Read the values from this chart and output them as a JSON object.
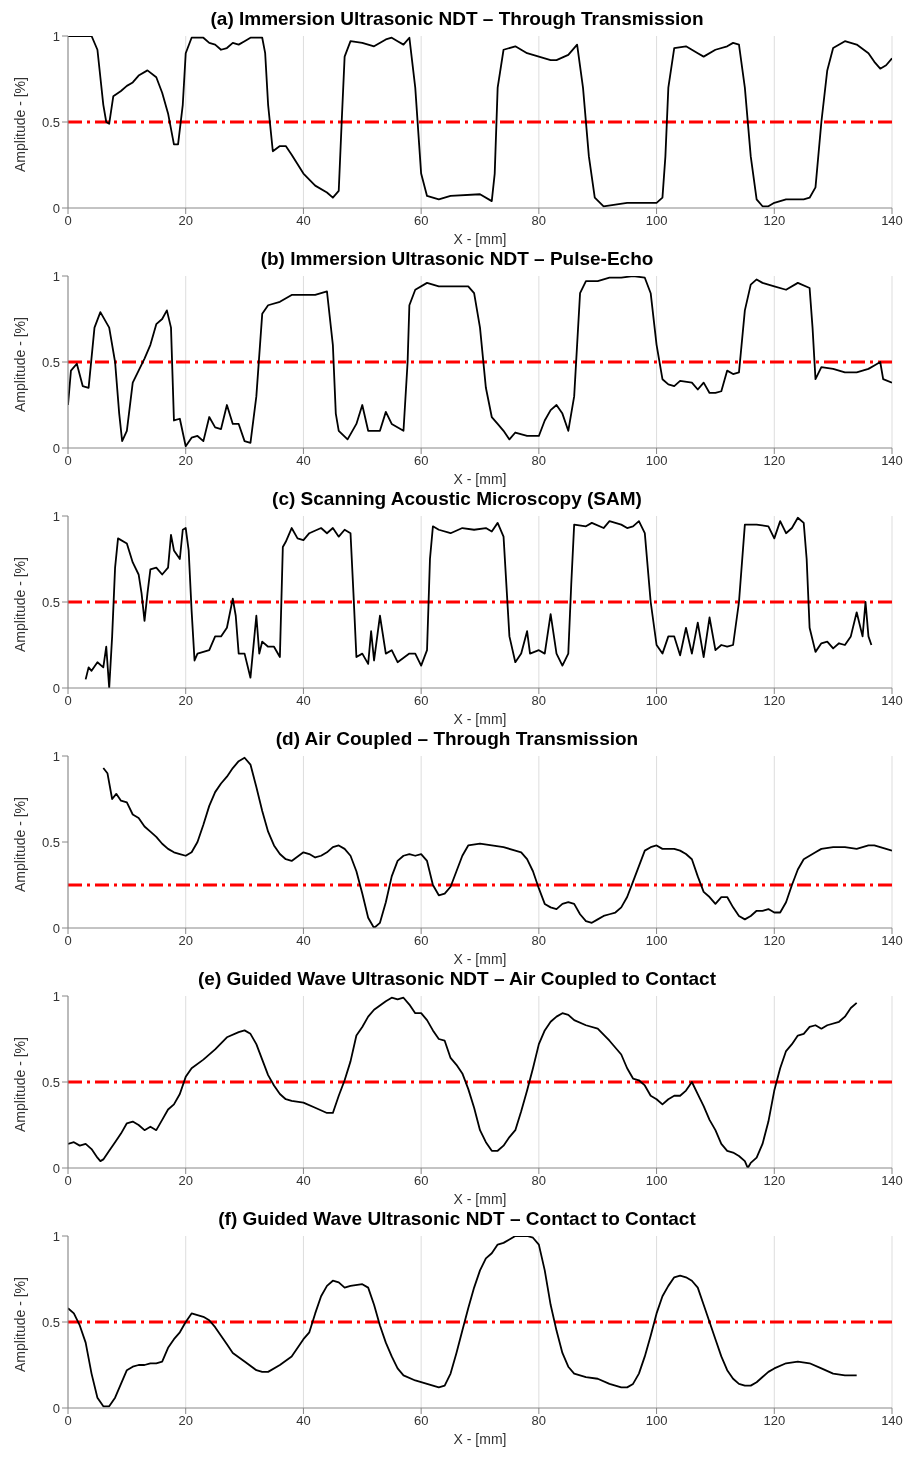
{
  "chart_data": [
    {
      "type": "line",
      "title": "(a) Immersion Ultrasonic NDT – Through Transmission",
      "xlabel": "X - [mm]",
      "ylabel": "Amplitude - [%]",
      "xlim": [
        0,
        140
      ],
      "xticks": [
        0,
        20,
        40,
        60,
        80,
        100,
        120,
        140
      ],
      "ylim": [
        0,
        1
      ],
      "yticks": [
        0,
        0.5,
        1
      ],
      "grid": "x",
      "ref_lines": [
        {
          "axis": "y",
          "value": 0.5,
          "color": "#ff0000",
          "line_style": "dashed"
        }
      ],
      "series": [
        {
          "color": "#000000",
          "x": [
            0,
            4,
            5,
            6,
            6.5,
            7,
            7.7,
            9,
            10,
            11,
            12,
            13.5,
            15,
            16,
            17,
            18,
            18.7,
            19.5,
            20,
            21,
            23,
            24,
            25,
            26,
            27,
            28,
            29,
            30,
            31,
            33,
            33.5,
            34,
            34.8,
            36,
            37,
            38,
            40,
            42,
            44,
            45,
            46,
            46.5,
            47,
            48,
            50,
            52,
            54,
            55,
            56,
            57,
            58,
            59,
            60,
            61,
            63,
            65,
            70,
            72,
            72.5,
            73,
            74,
            76,
            78,
            80,
            82,
            83,
            85,
            86.5,
            87.5,
            88.5,
            89.5,
            91,
            93,
            95,
            100,
            101,
            101.5,
            102,
            103,
            105,
            107,
            108,
            110,
            112,
            113,
            114,
            115,
            116,
            117,
            118,
            119,
            120,
            122,
            125,
            126,
            127,
            128,
            129,
            130,
            132,
            134,
            136,
            137,
            138,
            139,
            140
          ],
          "values": [
            1,
            1,
            0.92,
            0.6,
            0.5,
            0.49,
            0.65,
            0.68,
            0.71,
            0.73,
            0.77,
            0.8,
            0.76,
            0.67,
            0.55,
            0.37,
            0.37,
            0.6,
            0.9,
            0.99,
            0.99,
            0.96,
            0.95,
            0.92,
            0.93,
            0.96,
            0.95,
            0.97,
            0.99,
            0.99,
            0.9,
            0.6,
            0.33,
            0.36,
            0.36,
            0.31,
            0.2,
            0.13,
            0.09,
            0.06,
            0.1,
            0.5,
            0.88,
            0.97,
            0.96,
            0.94,
            0.98,
            0.99,
            0.97,
            0.95,
            0.99,
            0.7,
            0.2,
            0.07,
            0.05,
            0.07,
            0.08,
            0.04,
            0.2,
            0.7,
            0.92,
            0.94,
            0.9,
            0.88,
            0.86,
            0.86,
            0.89,
            0.95,
            0.7,
            0.3,
            0.06,
            0.01,
            0.02,
            0.03,
            0.03,
            0.06,
            0.3,
            0.7,
            0.93,
            0.94,
            0.9,
            0.88,
            0.92,
            0.94,
            0.96,
            0.95,
            0.7,
            0.3,
            0.05,
            0.01,
            0.01,
            0.03,
            0.05,
            0.05,
            0.06,
            0.12,
            0.5,
            0.8,
            0.93,
            0.97,
            0.95,
            0.9,
            0.85,
            0.81,
            0.83,
            0.87
          ]
        }
      ]
    },
    {
      "type": "line",
      "title": "(b) Immersion Ultrasonic NDT – Pulse-Echo",
      "xlabel": "X - [mm]",
      "ylabel": "Amplitude - [%]",
      "xlim": [
        0,
        140
      ],
      "xticks": [
        0,
        20,
        40,
        60,
        80,
        100,
        120,
        140
      ],
      "ylim": [
        0,
        1
      ],
      "yticks": [
        0,
        0.5,
        1
      ],
      "grid": "x",
      "ref_lines": [
        {
          "axis": "y",
          "value": 0.5,
          "color": "#ff0000",
          "line_style": "dashed"
        }
      ],
      "series": [
        {
          "color": "#000000",
          "x": [
            0,
            0.5,
            1.5,
            2.5,
            3.5,
            4.5,
            5.5,
            7,
            8,
            8.7,
            9.2,
            10,
            11,
            12,
            13,
            14,
            15,
            16,
            16.8,
            17.5,
            18,
            19,
            20,
            21,
            22,
            23,
            24,
            25,
            26,
            27,
            28,
            29,
            30,
            31,
            32,
            33,
            34,
            36,
            38,
            40,
            42,
            44,
            45,
            45.5,
            46,
            47.5,
            49,
            50,
            51,
            53,
            54,
            55,
            57,
            57.7,
            58,
            59,
            61,
            63,
            66,
            68,
            69,
            70,
            71,
            72,
            73,
            74,
            75,
            76,
            78,
            80,
            81,
            82,
            83,
            84,
            85,
            86,
            87,
            88,
            90,
            92,
            94,
            96,
            98,
            99,
            100,
            101,
            102,
            103,
            104,
            106,
            107,
            108,
            109,
            110,
            111,
            112,
            113,
            114,
            115,
            116,
            117,
            118,
            120,
            122,
            124,
            126,
            126.5,
            127,
            128,
            130,
            132,
            134,
            136,
            137,
            138,
            138.5,
            140
          ],
          "values": [
            0.25,
            0.45,
            0.49,
            0.36,
            0.35,
            0.7,
            0.79,
            0.7,
            0.5,
            0.2,
            0.04,
            0.1,
            0.38,
            0.45,
            0.52,
            0.6,
            0.72,
            0.75,
            0.8,
            0.7,
            0.16,
            0.17,
            0.01,
            0.06,
            0.07,
            0.04,
            0.18,
            0.12,
            0.11,
            0.25,
            0.14,
            0.14,
            0.04,
            0.03,
            0.3,
            0.78,
            0.83,
            0.85,
            0.89,
            0.89,
            0.89,
            0.91,
            0.6,
            0.2,
            0.1,
            0.05,
            0.14,
            0.25,
            0.1,
            0.1,
            0.21,
            0.14,
            0.1,
            0.5,
            0.83,
            0.92,
            0.96,
            0.94,
            0.94,
            0.94,
            0.9,
            0.7,
            0.35,
            0.18,
            0.14,
            0.1,
            0.05,
            0.09,
            0.07,
            0.07,
            0.16,
            0.22,
            0.25,
            0.2,
            0.1,
            0.3,
            0.9,
            0.97,
            0.97,
            0.99,
            0.99,
            1,
            0.99,
            0.9,
            0.6,
            0.4,
            0.37,
            0.36,
            0.39,
            0.38,
            0.34,
            0.38,
            0.32,
            0.32,
            0.33,
            0.45,
            0.43,
            0.44,
            0.8,
            0.95,
            0.98,
            0.96,
            0.94,
            0.92,
            0.96,
            0.93,
            0.7,
            0.4,
            0.47,
            0.46,
            0.44,
            0.44,
            0.46,
            0.48,
            0.5,
            0.4,
            0.38
          ]
        }
      ]
    },
    {
      "type": "line",
      "title": "(c) Scanning Acoustic Microscopy (SAM)",
      "xlabel": "X - [mm]",
      "ylabel": "Amplitude - [%]",
      "xlim": [
        0,
        140
      ],
      "xticks": [
        0,
        20,
        40,
        60,
        80,
        100,
        120,
        140
      ],
      "ylim": [
        0,
        1
      ],
      "yticks": [
        0,
        0.5,
        1
      ],
      "grid": "x",
      "ref_lines": [
        {
          "axis": "y",
          "value": 0.5,
          "color": "#ff0000",
          "line_style": "dashed"
        }
      ],
      "series": [
        {
          "color": "#000000",
          "x": [
            3,
            3.5,
            4,
            5,
            6,
            6.5,
            7,
            7.5,
            8,
            8.5,
            10,
            11,
            12,
            12.5,
            13,
            13.5,
            14,
            15,
            16,
            17,
            17.5,
            18,
            19,
            19.5,
            20,
            20.5,
            21,
            21.5,
            22,
            24,
            25,
            26,
            27,
            28,
            28.5,
            29,
            30,
            31,
            32,
            32.5,
            33,
            34,
            35,
            36,
            36.5,
            37,
            38,
            39,
            40,
            41,
            43,
            44,
            45,
            46,
            47,
            48,
            48.5,
            49,
            50,
            51,
            51.5,
            52,
            53,
            54,
            55,
            56,
            58,
            59,
            60,
            61,
            61.5,
            62,
            63,
            65,
            67,
            69,
            71,
            72,
            73,
            74,
            75,
            76,
            77,
            78,
            78.5,
            80,
            81,
            82,
            83,
            84,
            85,
            85.5,
            86,
            88,
            89,
            91,
            92,
            94,
            95,
            96,
            97,
            98,
            99,
            100,
            101,
            102,
            103,
            104,
            105,
            106,
            107,
            108,
            109,
            110,
            111,
            112,
            113,
            114,
            115,
            117,
            119,
            120,
            121,
            122,
            123,
            124,
            125,
            125.5,
            126,
            127,
            128,
            129,
            130,
            131,
            132,
            133,
            134,
            135,
            135.5,
            136,
            136.5
          ],
          "values": [
            0.05,
            0.12,
            0.1,
            0.15,
            0.12,
            0.24,
            0,
            0.3,
            0.7,
            0.87,
            0.84,
            0.73,
            0.66,
            0.55,
            0.39,
            0.55,
            0.69,
            0.7,
            0.66,
            0.7,
            0.89,
            0.8,
            0.75,
            0.92,
            0.93,
            0.8,
            0.45,
            0.16,
            0.2,
            0.22,
            0.3,
            0.3,
            0.35,
            0.52,
            0.42,
            0.2,
            0.2,
            0.06,
            0.42,
            0.2,
            0.27,
            0.24,
            0.24,
            0.18,
            0.82,
            0.85,
            0.93,
            0.87,
            0.86,
            0.9,
            0.93,
            0.9,
            0.93,
            0.88,
            0.92,
            0.9,
            0.55,
            0.18,
            0.2,
            0.14,
            0.33,
            0.16,
            0.42,
            0.2,
            0.22,
            0.15,
            0.2,
            0.2,
            0.13,
            0.22,
            0.75,
            0.94,
            0.92,
            0.9,
            0.93,
            0.92,
            0.93,
            0.91,
            0.96,
            0.88,
            0.3,
            0.15,
            0.2,
            0.33,
            0.2,
            0.22,
            0.2,
            0.43,
            0.2,
            0.13,
            0.2,
            0.6,
            0.95,
            0.94,
            0.96,
            0.93,
            0.97,
            0.95,
            0.93,
            0.94,
            0.97,
            0.9,
            0.5,
            0.25,
            0.2,
            0.3,
            0.3,
            0.19,
            0.35,
            0.2,
            0.38,
            0.18,
            0.41,
            0.22,
            0.25,
            0.24,
            0.25,
            0.5,
            0.95,
            0.95,
            0.94,
            0.87,
            0.97,
            0.9,
            0.93,
            0.99,
            0.96,
            0.75,
            0.35,
            0.21,
            0.26,
            0.27,
            0.23,
            0.26,
            0.25,
            0.3,
            0.44,
            0.3,
            0.5,
            0.3,
            0.25
          ]
        }
      ]
    },
    {
      "type": "line",
      "title": "(d) Air Coupled – Through Transmission",
      "xlabel": "X - [mm]",
      "ylabel": "Amplitude - [%]",
      "xlim": [
        0,
        140
      ],
      "xticks": [
        0,
        20,
        40,
        60,
        80,
        100,
        120,
        140
      ],
      "ylim": [
        0,
        1
      ],
      "yticks": [
        0,
        0.5,
        1
      ],
      "grid": "x",
      "ref_lines": [
        {
          "axis": "y",
          "value": 0.25,
          "color": "#ff0000",
          "line_style": "dashed"
        }
      ],
      "series": [
        {
          "color": "#000000",
          "x": [
            6,
            6.7,
            7.5,
            8.2,
            9,
            10,
            11,
            12,
            13,
            14,
            15,
            16,
            17,
            18,
            19,
            20,
            21,
            22,
            23,
            24,
            25,
            26,
            27,
            28,
            29,
            30,
            31,
            32,
            33,
            34,
            35,
            36,
            37,
            38,
            40,
            41,
            42,
            43,
            44,
            45,
            46,
            47,
            48,
            49,
            50,
            51,
            52,
            53,
            54,
            55,
            56,
            57,
            58,
            59,
            60,
            61,
            62,
            63,
            64,
            65,
            66,
            67,
            68,
            70,
            72,
            74,
            76,
            77,
            78,
            79,
            80,
            81,
            82,
            83,
            84,
            85,
            86,
            87,
            88,
            89,
            90,
            91,
            92,
            93,
            94,
            95,
            96,
            97,
            98,
            99,
            100,
            101,
            103,
            104,
            105,
            106,
            107,
            108,
            109,
            110,
            111,
            112,
            113,
            114,
            115,
            116,
            117,
            118,
            119,
            120,
            121,
            122,
            123,
            124,
            125,
            127,
            128,
            130,
            132,
            134,
            136,
            137,
            138,
            139,
            140
          ],
          "values": [
            0.93,
            0.9,
            0.75,
            0.78,
            0.74,
            0.73,
            0.66,
            0.64,
            0.59,
            0.56,
            0.53,
            0.49,
            0.46,
            0.44,
            0.43,
            0.42,
            0.44,
            0.5,
            0.6,
            0.71,
            0.79,
            0.84,
            0.88,
            0.93,
            0.97,
            0.99,
            0.95,
            0.82,
            0.68,
            0.56,
            0.48,
            0.43,
            0.4,
            0.39,
            0.44,
            0.43,
            0.41,
            0.42,
            0.44,
            0.47,
            0.48,
            0.46,
            0.42,
            0.33,
            0.2,
            0.06,
            0,
            0.03,
            0.15,
            0.3,
            0.39,
            0.42,
            0.43,
            0.42,
            0.43,
            0.39,
            0.25,
            0.19,
            0.2,
            0.24,
            0.33,
            0.42,
            0.48,
            0.49,
            0.48,
            0.47,
            0.45,
            0.44,
            0.4,
            0.33,
            0.23,
            0.14,
            0.12,
            0.11,
            0.14,
            0.15,
            0.14,
            0.08,
            0.04,
            0.03,
            0.05,
            0.07,
            0.08,
            0.09,
            0.12,
            0.18,
            0.27,
            0.36,
            0.45,
            0.47,
            0.48,
            0.46,
            0.46,
            0.45,
            0.43,
            0.4,
            0.3,
            0.21,
            0.18,
            0.14,
            0.18,
            0.18,
            0.12,
            0.07,
            0.05,
            0.07,
            0.1,
            0.1,
            0.11,
            0.09,
            0.09,
            0.15,
            0.25,
            0.34,
            0.4,
            0.44,
            0.46,
            0.47,
            0.47,
            0.46,
            0.48,
            0.48,
            0.47,
            0.46,
            0.45
          ]
        }
      ]
    },
    {
      "type": "line",
      "title": "(e) Guided Wave Ultrasonic NDT – Air Coupled to Contact",
      "xlabel": "X - [mm]",
      "ylabel": "Amplitude - [%]",
      "xlim": [
        0,
        140
      ],
      "xticks": [
        0,
        20,
        40,
        60,
        80,
        100,
        120,
        140
      ],
      "ylim": [
        0,
        1
      ],
      "yticks": [
        0,
        0.5,
        1
      ],
      "grid": "x",
      "ref_lines": [
        {
          "axis": "y",
          "value": 0.5,
          "color": "#ff0000",
          "line_style": "dashed"
        }
      ],
      "series": [
        {
          "color": "#000000",
          "x": [
            0,
            1,
            2,
            3,
            4,
            5,
            5.5,
            6,
            7,
            8,
            9,
            10,
            11,
            12,
            13,
            14,
            15,
            16,
            17,
            18,
            19,
            20,
            21,
            23,
            25,
            27,
            29,
            30,
            31,
            32,
            33,
            34,
            35,
            36,
            37,
            38,
            40,
            42,
            44,
            45,
            46,
            47,
            48,
            49,
            50,
            51,
            52,
            54,
            55,
            56,
            57,
            58,
            59,
            60,
            61,
            62,
            63,
            64,
            65,
            66,
            67,
            68,
            69,
            70,
            71,
            72,
            73,
            74,
            75,
            76,
            77,
            78,
            79,
            80,
            81,
            82,
            83,
            84,
            85,
            86,
            88,
            90,
            92,
            94,
            95,
            96,
            97,
            98,
            99,
            100,
            101,
            102,
            103,
            104,
            105,
            106,
            107,
            108,
            109,
            110,
            111,
            112,
            113,
            114,
            115,
            115.5,
            116,
            117,
            118,
            119,
            120,
            121,
            122,
            123,
            124,
            125,
            126,
            127,
            128,
            129,
            131,
            132,
            133,
            134
          ],
          "values": [
            0.14,
            0.15,
            0.13,
            0.14,
            0.11,
            0.06,
            0.04,
            0.05,
            0.1,
            0.15,
            0.2,
            0.26,
            0.27,
            0.25,
            0.22,
            0.24,
            0.22,
            0.28,
            0.34,
            0.37,
            0.43,
            0.53,
            0.58,
            0.63,
            0.69,
            0.76,
            0.79,
            0.8,
            0.78,
            0.72,
            0.63,
            0.54,
            0.48,
            0.43,
            0.4,
            0.39,
            0.38,
            0.35,
            0.32,
            0.32,
            0.42,
            0.51,
            0.62,
            0.77,
            0.82,
            0.88,
            0.92,
            0.97,
            0.99,
            0.98,
            0.99,
            0.95,
            0.9,
            0.9,
            0.86,
            0.8,
            0.75,
            0.74,
            0.64,
            0.6,
            0.55,
            0.46,
            0.35,
            0.22,
            0.15,
            0.1,
            0.1,
            0.13,
            0.18,
            0.22,
            0.33,
            0.45,
            0.58,
            0.72,
            0.8,
            0.85,
            0.88,
            0.9,
            0.89,
            0.86,
            0.83,
            0.81,
            0.74,
            0.66,
            0.58,
            0.52,
            0.51,
            0.48,
            0.42,
            0.4,
            0.37,
            0.4,
            0.42,
            0.42,
            0.45,
            0.5,
            0.43,
            0.36,
            0.28,
            0.22,
            0.14,
            0.1,
            0.09,
            0.07,
            0.04,
            0,
            0.03,
            0.06,
            0.14,
            0.27,
            0.45,
            0.58,
            0.68,
            0.72,
            0.77,
            0.78,
            0.82,
            0.83,
            0.81,
            0.83,
            0.85,
            0.88,
            0.93,
            0.96
          ]
        }
      ]
    },
    {
      "type": "line",
      "title": "(f) Guided Wave Ultrasonic NDT – Contact to Contact",
      "xlabel": "X - [mm]",
      "ylabel": "Amplitude - [%]",
      "xlim": [
        0,
        140
      ],
      "xticks": [
        0,
        20,
        40,
        60,
        80,
        100,
        120,
        140
      ],
      "ylim": [
        0,
        1
      ],
      "yticks": [
        0,
        0.5,
        1
      ],
      "grid": "x",
      "ref_lines": [
        {
          "axis": "y",
          "value": 0.5,
          "color": "#ff0000",
          "line_style": "dashed"
        }
      ],
      "series": [
        {
          "color": "#000000",
          "x": [
            0,
            1,
            2,
            3,
            4,
            5,
            6,
            7,
            8,
            9,
            10,
            11,
            12,
            13,
            14,
            15,
            16,
            17,
            18,
            19,
            20,
            21,
            22,
            23,
            24,
            25,
            26,
            27,
            28,
            30,
            32,
            33,
            34,
            36,
            38,
            40,
            41,
            42,
            43,
            44,
            45,
            46,
            47,
            48,
            50,
            51,
            52,
            53,
            54,
            55,
            56,
            57,
            59,
            61,
            63,
            64,
            65,
            66,
            67,
            68,
            69,
            70,
            71,
            72,
            73,
            74,
            75,
            76,
            78,
            79,
            80,
            81,
            82,
            83,
            84,
            85,
            86,
            88,
            90,
            92,
            94,
            95,
            96,
            97,
            98,
            99,
            100,
            101,
            102,
            103,
            104,
            105,
            106,
            107,
            108,
            109,
            110,
            111,
            112,
            113,
            114,
            115,
            116,
            117,
            118,
            119,
            120,
            122,
            124,
            126,
            128,
            130,
            132,
            133,
            134
          ],
          "values": [
            0.58,
            0.55,
            0.48,
            0.38,
            0.2,
            0.06,
            0.01,
            0.01,
            0.06,
            0.14,
            0.22,
            0.24,
            0.25,
            0.25,
            0.26,
            0.26,
            0.27,
            0.35,
            0.4,
            0.44,
            0.5,
            0.55,
            0.54,
            0.53,
            0.51,
            0.47,
            0.42,
            0.37,
            0.32,
            0.27,
            0.22,
            0.21,
            0.21,
            0.25,
            0.3,
            0.4,
            0.44,
            0.55,
            0.65,
            0.71,
            0.74,
            0.73,
            0.7,
            0.71,
            0.72,
            0.7,
            0.6,
            0.48,
            0.38,
            0.3,
            0.23,
            0.19,
            0.16,
            0.14,
            0.12,
            0.13,
            0.2,
            0.32,
            0.45,
            0.58,
            0.7,
            0.8,
            0.87,
            0.9,
            0.95,
            0.96,
            0.98,
            1,
            1,
            0.99,
            0.95,
            0.8,
            0.6,
            0.45,
            0.32,
            0.24,
            0.2,
            0.18,
            0.17,
            0.14,
            0.12,
            0.12,
            0.14,
            0.2,
            0.3,
            0.42,
            0.55,
            0.65,
            0.71,
            0.76,
            0.77,
            0.76,
            0.74,
            0.7,
            0.6,
            0.5,
            0.4,
            0.3,
            0.22,
            0.17,
            0.14,
            0.13,
            0.13,
            0.15,
            0.18,
            0.21,
            0.23,
            0.26,
            0.27,
            0.26,
            0.23,
            0.2,
            0.19,
            0.19,
            0.19
          ]
        }
      ]
    }
  ]
}
